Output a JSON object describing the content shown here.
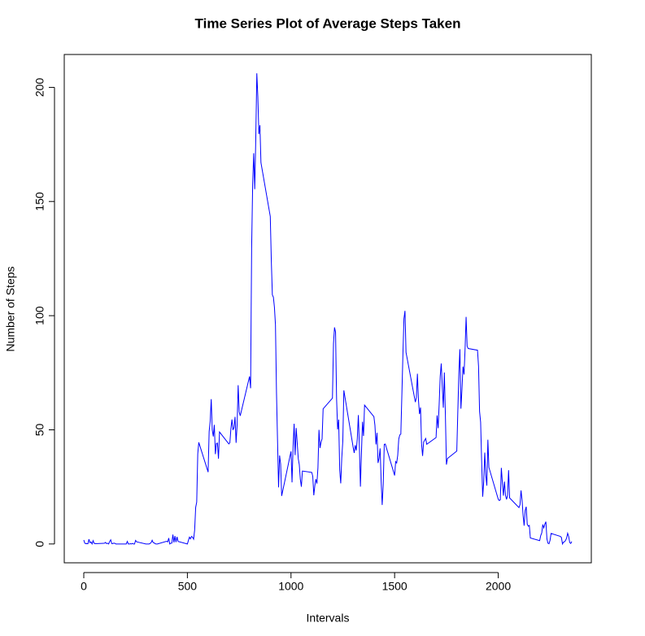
{
  "chart_data": {
    "type": "line",
    "title": "Time Series Plot of Average Steps Taken",
    "x_label": "Intervals",
    "y_label": "Number of Steps",
    "color": "#0000ff",
    "xlim": [
      -94.2,
      2449.2
    ],
    "ylim": [
      -8.25,
      214.4
    ],
    "xticks": [
      0,
      500,
      1000,
      1500,
      2000
    ],
    "yticks": [
      0,
      50,
      100,
      150,
      200
    ],
    "grid": false,
    "x": [
      0,
      5,
      10,
      15,
      20,
      25,
      30,
      35,
      40,
      45,
      50,
      55,
      100,
      105,
      110,
      115,
      120,
      125,
      130,
      135,
      140,
      145,
      150,
      155,
      200,
      205,
      210,
      215,
      220,
      225,
      230,
      235,
      240,
      245,
      250,
      255,
      300,
      305,
      310,
      315,
      320,
      325,
      330,
      335,
      340,
      345,
      350,
      355,
      400,
      405,
      410,
      415,
      420,
      425,
      430,
      435,
      440,
      445,
      450,
      455,
      500,
      505,
      510,
      515,
      520,
      525,
      530,
      535,
      540,
      545,
      550,
      555,
      600,
      605,
      610,
      615,
      620,
      625,
      630,
      635,
      640,
      645,
      650,
      655,
      700,
      705,
      710,
      715,
      720,
      725,
      730,
      735,
      740,
      745,
      750,
      755,
      800,
      805,
      810,
      815,
      820,
      825,
      830,
      835,
      840,
      845,
      850,
      855,
      900,
      905,
      910,
      915,
      920,
      925,
      930,
      935,
      940,
      945,
      950,
      955,
      1000,
      1005,
      1010,
      1015,
      1020,
      1025,
      1030,
      1035,
      1040,
      1045,
      1050,
      1055,
      1100,
      1105,
      1110,
      1115,
      1120,
      1125,
      1130,
      1135,
      1140,
      1145,
      1150,
      1155,
      1200,
      1205,
      1210,
      1215,
      1220,
      1225,
      1230,
      1235,
      1240,
      1245,
      1250,
      1255,
      1300,
      1305,
      1310,
      1315,
      1320,
      1325,
      1330,
      1335,
      1340,
      1345,
      1350,
      1355,
      1400,
      1405,
      1410,
      1415,
      1420,
      1425,
      1430,
      1435,
      1440,
      1445,
      1450,
      1455,
      1500,
      1505,
      1510,
      1515,
      1520,
      1525,
      1530,
      1535,
      1540,
      1545,
      1550,
      1555,
      1600,
      1605,
      1610,
      1615,
      1620,
      1625,
      1630,
      1635,
      1640,
      1645,
      1650,
      1655,
      1700,
      1705,
      1710,
      1715,
      1720,
      1725,
      1730,
      1735,
      1740,
      1745,
      1750,
      1755,
      1800,
      1805,
      1810,
      1815,
      1820,
      1825,
      1830,
      1835,
      1840,
      1845,
      1850,
      1855,
      1900,
      1905,
      1910,
      1915,
      1920,
      1925,
      1930,
      1935,
      1940,
      1945,
      1950,
      1955,
      2000,
      2005,
      2010,
      2015,
      2020,
      2025,
      2030,
      2035,
      2040,
      2045,
      2050,
      2055,
      2100,
      2105,
      2110,
      2115,
      2120,
      2125,
      2130,
      2135,
      2140,
      2145,
      2150,
      2155,
      2200,
      2205,
      2210,
      2215,
      2220,
      2225,
      2230,
      2235,
      2240,
      2245,
      2250,
      2255,
      2300,
      2305,
      2310,
      2315,
      2320,
      2325,
      2330,
      2335,
      2340,
      2345,
      2350,
      2355
    ],
    "values": [
      1.72,
      0.34,
      0.13,
      0.15,
      0.08,
      2.09,
      0.53,
      0.87,
      0,
      1.47,
      0.3,
      0.13,
      0.32,
      0.68,
      0.15,
      0.34,
      0,
      1.11,
      1.83,
      0.17,
      0.17,
      0.38,
      0.26,
      0,
      0,
      0,
      1.11,
      0,
      0,
      0.13,
      0,
      0.23,
      0,
      0,
      1.55,
      0.94,
      0,
      0,
      0,
      0,
      0.21,
      0.62,
      1.62,
      0.58,
      0.49,
      0.08,
      0,
      0,
      1.19,
      0.94,
      2.57,
      0,
      0.34,
      0.36,
      4.11,
      0.66,
      3.49,
      0.83,
      3.11,
      1.11,
      0,
      1.57,
      3,
      2.25,
      3.32,
      2.96,
      2.09,
      6.06,
      16.02,
      18.34,
      39.45,
      44.49,
      31.49,
      49.26,
      53.77,
      63.45,
      49.96,
      47.08,
      52.15,
      39.34,
      44.02,
      44.17,
      37.36,
      49.04,
      43.81,
      44.38,
      50.51,
      54.51,
      49.92,
      50.98,
      55.68,
      44.32,
      52.26,
      69.55,
      57.85,
      56.15,
      73.38,
      68.21,
      129.43,
      157.53,
      171.15,
      155.4,
      177.3,
      206.17,
      195.92,
      179.57,
      183.4,
      167.02,
      143.45,
      124.04,
      109.11,
      108.11,
      103.72,
      95.96,
      66.21,
      45.23,
      24.79,
      38.75,
      34.98,
      21.06,
      40.57,
      26.98,
      42.42,
      52.66,
      38.92,
      50.79,
      44.28,
      37.42,
      34.7,
      28.34,
      25.09,
      31.94,
      31.36,
      29.68,
      21.32,
      25.55,
      28.38,
      26.47,
      33.43,
      49.98,
      42.04,
      44.6,
      46.04,
      59.19,
      63.87,
      87.7,
      94.85,
      92.77,
      63.4,
      50.17,
      54.47,
      32.42,
      26.53,
      37.74,
      45.06,
      67.28,
      42.34,
      39.88,
      43.26,
      40.98,
      46.25,
      56.43,
      42.75,
      25.13,
      39.96,
      53.55,
      47.32,
      60.81,
      55.75,
      51.96,
      43.58,
      48.7,
      35.47,
      37.55,
      41.85,
      27.51,
      17.11,
      26.08,
      43.62,
      43.77,
      30.02,
      36.08,
      35.49,
      38.85,
      45.96,
      47.75,
      48.13,
      65.32,
      82.91,
      98.66,
      102.11,
      83.96,
      62.13,
      64.13,
      74.55,
      63.17,
      56.91,
      59.77,
      43.87,
      38.57,
      44.66,
      45.45,
      46.21,
      43.68,
      46.62,
      56.3,
      50.72,
      61.23,
      73.38,
      79.06,
      68.94,
      59.66,
      75.09,
      56.51,
      34.77,
      37.45,
      40.68,
      58.02,
      74.7,
      85.32,
      59.26,
      67.77,
      77.7,
      74.25,
      85.34,
      99.45,
      86.58,
      85.6,
      84.87,
      77.83,
      58.04,
      53.36,
      36.33,
      20.72,
      27.4,
      40.02,
      30.21,
      25.55,
      45.66,
      33.53,
      19.62,
      19.02,
      19.34,
      33.34,
      26.81,
      21.17,
      27.3,
      21.34,
      19.55,
      21.32,
      32.3,
      20.15,
      15.94,
      17.23,
      23.45,
      19.25,
      12.45,
      8.02,
      14.66,
      16.3,
      8.68,
      7.79,
      8.13,
      2.62,
      1.45,
      3.68,
      4.81,
      8.51,
      7.08,
      8.7,
      9.75,
      2.21,
      0.32,
      0.11,
      1.6,
      4.6,
      3.3,
      2.85,
      0,
      0.83,
      0.96,
      1.58,
      2.6,
      4.7,
      3.3,
      0.64,
      0.23,
      1.08
    ]
  }
}
